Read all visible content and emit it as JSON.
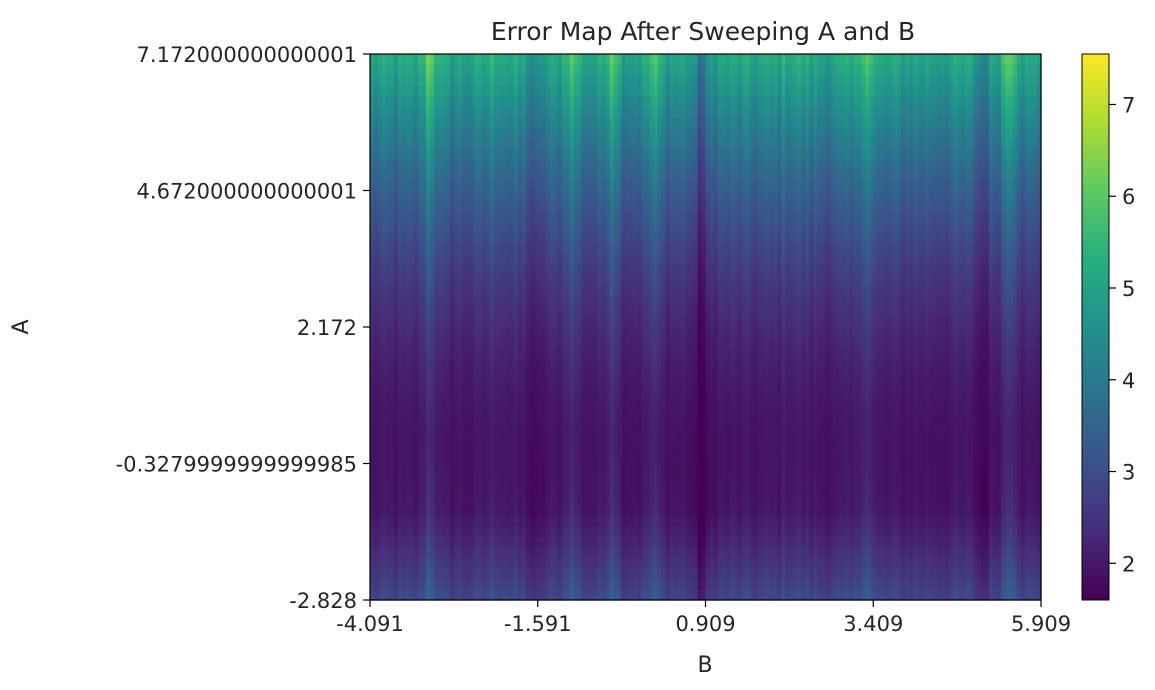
{
  "chart_data": {
    "type": "heatmap",
    "title": "Error Map After Sweeping A and B",
    "xlabel": "B",
    "ylabel": "A",
    "x_ticks": [
      "-4.091",
      "-1.591",
      "0.909",
      "3.409",
      "5.909"
    ],
    "y_ticks": [
      "-2.828",
      "-0.3279999999999985",
      "2.172",
      "4.672000000000001",
      "7.172000000000001"
    ],
    "xlim": [
      -4.091,
      5.909
    ],
    "ylim": [
      -2.828,
      7.172000000000001
    ],
    "colorbar": {
      "colormap": "viridis",
      "range": [
        1.6,
        7.55
      ],
      "ticks": [
        "2",
        "3",
        "4",
        "5",
        "6",
        "7"
      ]
    },
    "colors": {
      "low": "#440154",
      "mid": "#21918c",
      "high": "#fde725"
    }
  }
}
